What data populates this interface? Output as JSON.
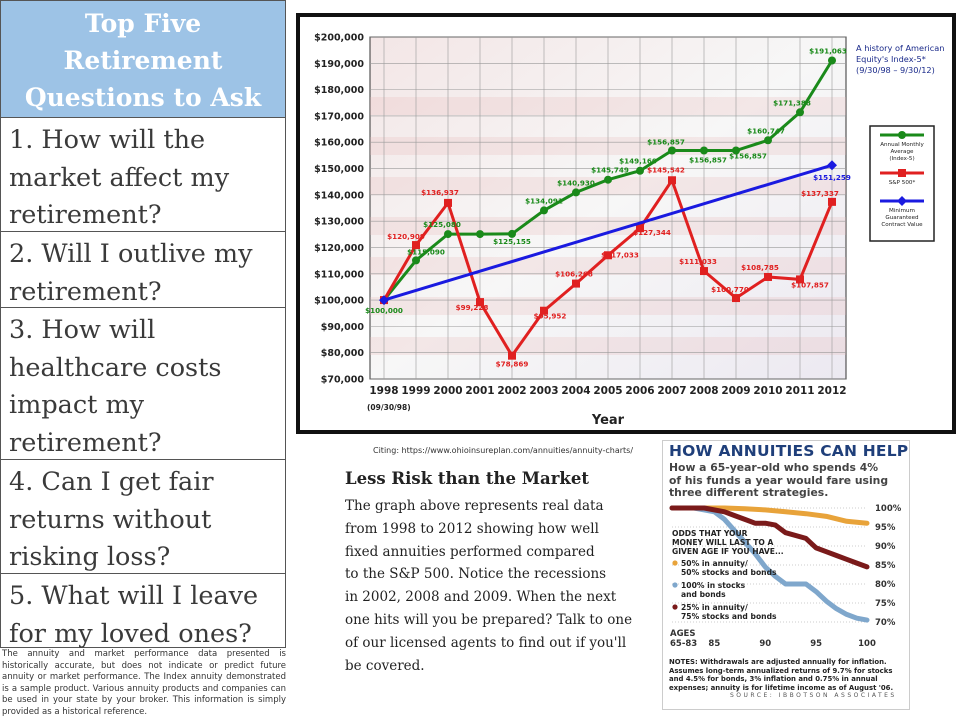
{
  "left_table": {
    "header": [
      "Top Five",
      "Retirement",
      "Questions to Ask"
    ],
    "questions": [
      {
        "lines": [
          "1. How will the",
          "market affect my",
          "retirement?"
        ]
      },
      {
        "lines": [
          "2. Will I outlive my",
          "retirement?"
        ]
      },
      {
        "lines": [
          "3. How will",
          "healthcare costs",
          "impact my",
          "retirement?"
        ]
      },
      {
        "lines": [
          "4. Can I get fair",
          "returns without",
          "risking loss?"
        ]
      },
      {
        "lines": [
          "5. What will I leave",
          "for my loved ones?"
        ]
      }
    ],
    "disclaimer": "The annuity and market performance data presented is historically accurate, but does not indicate or predict future annuity or market performance. The Index annuity demonstrated is a sample product. Various annuity products and companies can be used in your state by your broker. This information is simply provided as a historical reference."
  },
  "citing": "Citing: https://www.ohioinsureplan.com/annuities/annuity-charts/",
  "risk_section": {
    "title": "Less Risk than the Market",
    "lines": [
      "The graph above represents real data",
      "from 1998 to 2012 showing how well",
      "fixed annuities performed compared",
      "to the S&P 500. Notice the recessions",
      "in 2002, 2008 and 2009. When the next",
      "one hits will you be prepared? Talk to one",
      "of our licensed agents to find out if you'll",
      "be covered."
    ]
  },
  "chart_data": [
    {
      "type": "line",
      "title_lines": [
        "A history of American",
        "Equity's Index-5*",
        "(9/30/98 – 9/30/12)"
      ],
      "xlabel": "Year",
      "x_sublabel": "(09/30/98)",
      "categories": [
        "1998",
        "1999",
        "2000",
        "2001",
        "2002",
        "2003",
        "2004",
        "2005",
        "2006",
        "2007",
        "2008",
        "2009",
        "2010",
        "2011",
        "2012"
      ],
      "ylim": [
        70000,
        200000
      ],
      "yticks": [
        "$70,000",
        "$80,000",
        "$90,000",
        "$100,000",
        "$110,000",
        "$120,000",
        "$130,000",
        "$140,000",
        "$150,000",
        "$160,000",
        "$170,000",
        "$180,000",
        "$190,000",
        "$200,000"
      ],
      "grid": true,
      "legend_position": "right",
      "series": [
        {
          "name": "Annual Monthly Average (Index-5)",
          "color": "#1a8a1a",
          "values": [
            100000,
            115090,
            125080,
            125080,
            125155,
            134091,
            140930,
            145749,
            149160,
            156857,
            156857,
            156857,
            160747,
            171388,
            191063
          ],
          "labels": [
            "$100,000",
            "$115,090",
            "$125,080",
            "",
            "$125,155",
            "$134,091",
            "$140,930",
            "$145,749",
            "$149,160",
            "$156,857",
            "$156,857",
            "$156,857",
            "$160,747",
            "$171,388",
            "$191,063"
          ]
        },
        {
          "name": "S&P 500*",
          "color": "#e02020",
          "values": [
            100000,
            120909,
            136937,
            99228,
            78869,
            95952,
            106268,
            117033,
            127344,
            145542,
            111033,
            100770,
            108785,
            107857,
            137337
          ],
          "labels": [
            "",
            "$120,909",
            "$136,937",
            "$99,228",
            "$78,869",
            "$95,952",
            "$106,268",
            "$117,033",
            "$127,344",
            "$145,542",
            "$111,033",
            "$100,770",
            "$108,785",
            "$107,857",
            "$137,337"
          ]
        },
        {
          "name": "Minimum Guaranteed Contract Value",
          "color": "#1a1ae0",
          "values": [
            100000,
            null,
            null,
            null,
            null,
            null,
            null,
            null,
            null,
            null,
            null,
            null,
            null,
            null,
            151259
          ],
          "labels": [
            "",
            "",
            "",
            "",
            "",
            "",
            "",
            "",
            "",
            "",
            "",
            "",
            "",
            "",
            "$151,259"
          ]
        }
      ]
    },
    {
      "type": "line",
      "title": "HOW ANNUITIES CAN HELP",
      "subtitle_lines": [
        "How a 65-year-old who spends 4%",
        "of his funds a year would fare using",
        "three different strategies."
      ],
      "xlabel_prefix": "AGES",
      "x_first_label": "65-83",
      "x_ticks": [
        "85",
        "90",
        "95",
        "100"
      ],
      "ylim": [
        70,
        100
      ],
      "y_ticks": [
        "100%",
        "95%",
        "90%",
        "85%",
        "80%",
        "75%",
        "70%"
      ],
      "legend_heading": [
        "ODDS THAT YOUR",
        "MONEY WILL LAST TO A",
        "GIVEN AGE IF YOU HAVE..."
      ],
      "series": [
        {
          "name_lines": [
            "50% in annuity/",
            "50% stocks and bonds"
          ],
          "color": "#e8a33a",
          "points": [
            [
              65,
              100
            ],
            [
              86,
              100
            ],
            [
              88,
              99.8
            ],
            [
              90,
              99.5
            ],
            [
              92,
              99
            ],
            [
              94,
              98.5
            ],
            [
              96,
              97.8
            ],
            [
              98,
              96.5
            ],
            [
              100,
              96
            ]
          ]
        },
        {
          "name_lines": [
            "100% in stocks",
            "and bonds"
          ],
          "color": "#7fa7cc",
          "points": [
            [
              65,
              100
            ],
            [
              83,
              100
            ],
            [
              85,
              99
            ],
            [
              86,
              97
            ],
            [
              87,
              94
            ],
            [
              88,
              91
            ],
            [
              89,
              88
            ],
            [
              90,
              84.5
            ],
            [
              91,
              82
            ],
            [
              92,
              80
            ],
            [
              93,
              80
            ],
            [
              94,
              80
            ],
            [
              95,
              78
            ],
            [
              96,
              75.5
            ],
            [
              97,
              73.5
            ],
            [
              98,
              72
            ],
            [
              99,
              71
            ],
            [
              100,
              70.5
            ]
          ]
        },
        {
          "name_lines": [
            "25% in annuity/",
            "75% stocks and bonds"
          ],
          "color": "#7a1a1a",
          "points": [
            [
              65,
              100
            ],
            [
              84,
              100
            ],
            [
              86,
              99
            ],
            [
              87,
              98
            ],
            [
              88,
              97
            ],
            [
              89,
              96
            ],
            [
              90,
              96
            ],
            [
              91,
              95.5
            ],
            [
              92,
              93.5
            ],
            [
              94,
              92
            ],
            [
              95,
              89.5
            ],
            [
              96,
              88.5
            ],
            [
              97,
              87.5
            ],
            [
              98,
              86.5
            ],
            [
              99,
              85.5
            ],
            [
              100,
              84.5
            ]
          ]
        }
      ],
      "notes": "NOTES: Withdrawals are adjusted annually for inflation. Assumes long-term annualized returns of 9.7% for stocks and 4.5% for bonds, 3% inflation and 0.75% in annual expenses; annuity is for lifetime income as of August '06.",
      "source": "SOURCE: IBBOTSON ASSOCIATES"
    }
  ]
}
